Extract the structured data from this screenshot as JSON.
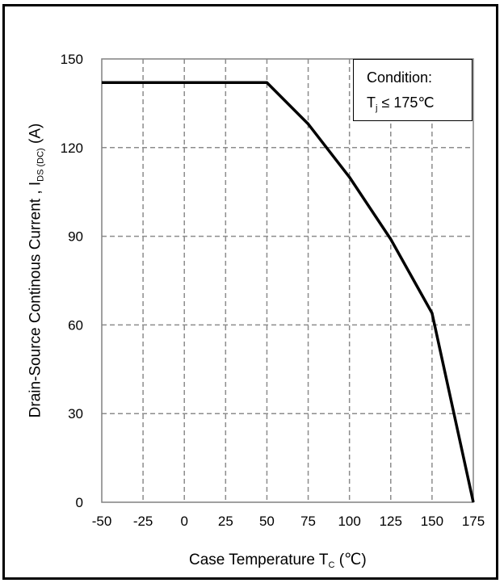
{
  "chart_data": {
    "type": "line",
    "x": [
      -50,
      50,
      75,
      100,
      125,
      150,
      175
    ],
    "series": [
      {
        "values": [
          142,
          142,
          128,
          110,
          89,
          64,
          0
        ]
      }
    ],
    "xlabel": {
      "prefix": "Case Temperature  T",
      "sub": "C",
      "suffix": " (℃)"
    },
    "ylabel": {
      "prefix": "Drain-Source Continous Current , I",
      "sub": "DS (DC)",
      "suffix": " (A)"
    },
    "xlim": [
      -50,
      175
    ],
    "ylim": [
      0,
      150
    ],
    "xticks": [
      -50,
      -25,
      0,
      25,
      50,
      75,
      100,
      125,
      150,
      175
    ],
    "yticks": [
      0,
      30,
      60,
      90,
      120,
      150
    ],
    "grid": true,
    "grid_style": "dashed",
    "line_color": "#000000",
    "grid_color": "#8c8c8c",
    "legend_placement": "top-right",
    "annotation": {
      "title": "Condition:",
      "cond_prefix": "T",
      "cond_sub": "j",
      "cond_suffix": "  ≤ 175℃"
    }
  }
}
